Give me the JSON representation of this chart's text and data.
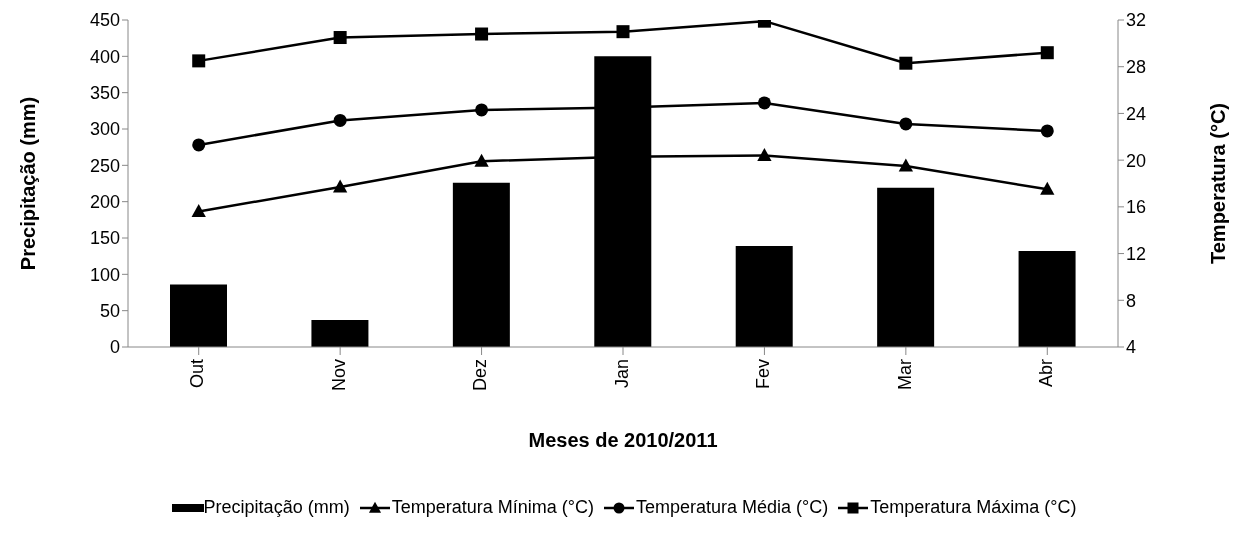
{
  "chart_data": {
    "type": "bar",
    "xlabel": "Meses de 2010/2011",
    "ylabel": "Precipitação (mm)",
    "y2label": "Temperatura (°C)",
    "categories": [
      "Out",
      "Nov",
      "Dez",
      "Jan",
      "Fev",
      "Mar",
      "Abr"
    ],
    "series": [
      {
        "name": "Precipitação (mm)",
        "color": "#000000",
        "values": [
          86,
          37,
          226,
          400,
          139,
          219,
          132
        ]
      },
      {
        "name": "Temperatura Mínima (°C)",
        "type": "line",
        "axis": "y2",
        "marker": "triangle",
        "color": "#000000",
        "values": [
          15.6,
          17.7,
          19.9,
          20.3,
          20.4,
          19.5,
          17.5
        ]
      },
      {
        "name": "Temperatura Média (°C)",
        "type": "line",
        "axis": "y2",
        "marker": "circle",
        "color": "#000000",
        "values": [
          21.3,
          23.4,
          24.3,
          24.5,
          24.9,
          23.1,
          22.5
        ]
      },
      {
        "name": "Temperatura Máxima (°C)",
        "type": "line",
        "axis": "y2",
        "marker": "square",
        "color": "#000000",
        "values": [
          28.5,
          30.5,
          30.8,
          31.0,
          31.9,
          28.3,
          29.2
        ]
      }
    ],
    "ylim": [
      0,
      450
    ],
    "yticks": [
      0,
      50,
      100,
      150,
      200,
      250,
      300,
      350,
      400,
      450
    ],
    "y2lim": [
      4,
      32
    ],
    "y2ticks": [
      4,
      8,
      12,
      16,
      20,
      24,
      28,
      32
    ],
    "grid": false,
    "legend": "bottom"
  }
}
